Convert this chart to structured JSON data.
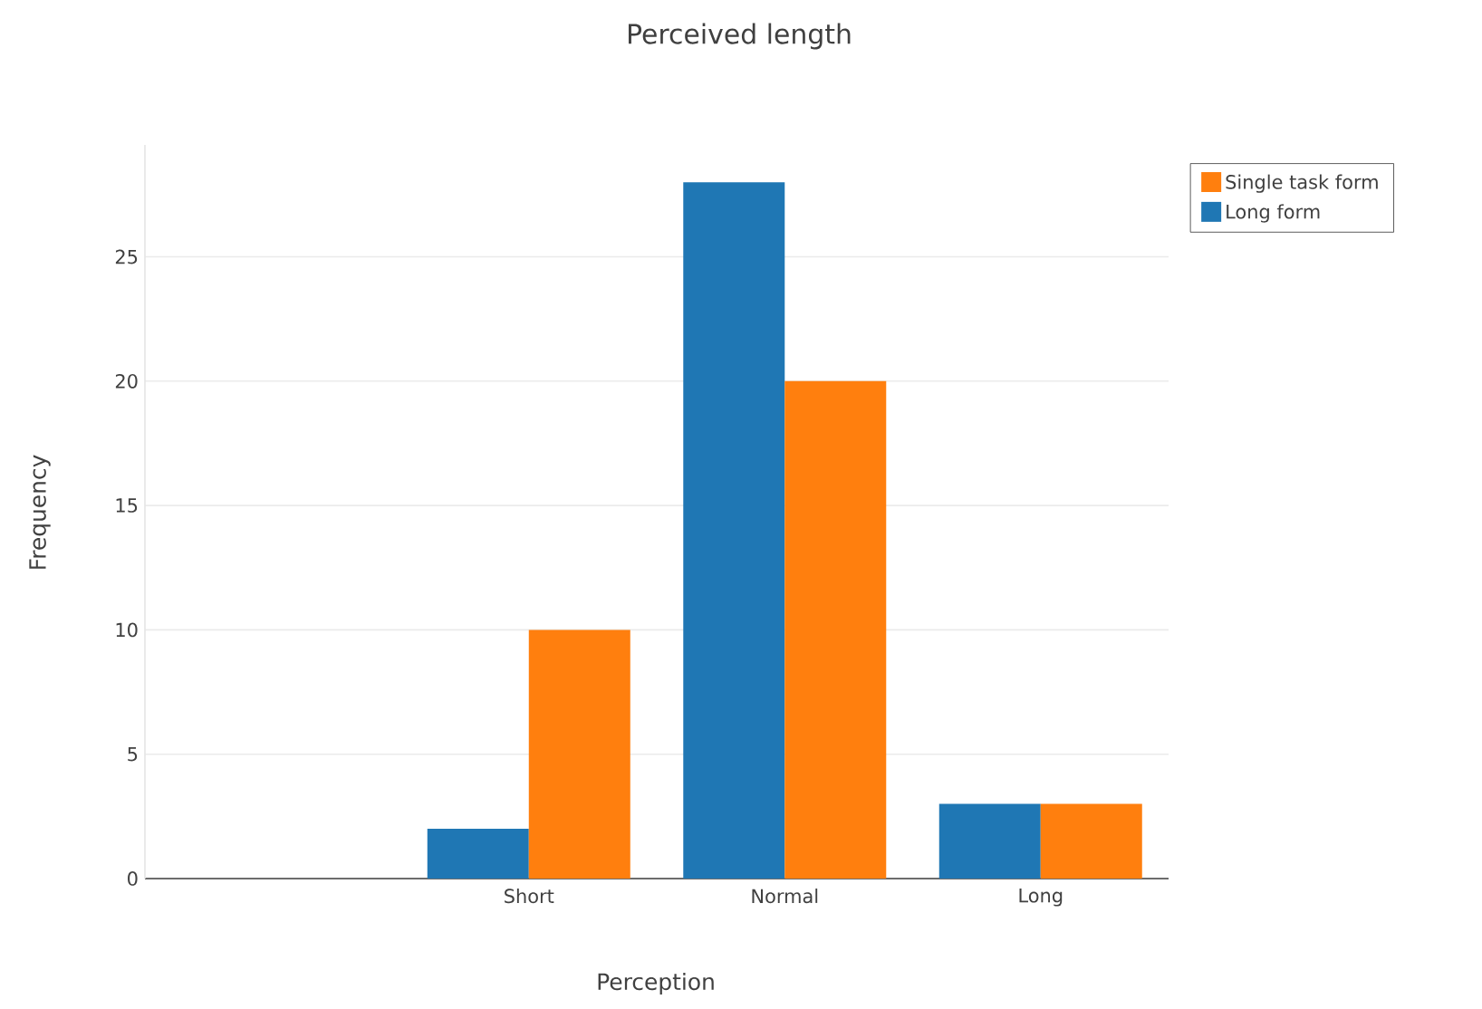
{
  "chart_data": {
    "type": "bar",
    "title": "Perceived length",
    "xlabel": "Perception",
    "ylabel": "Frequency",
    "categories": [
      null,
      "Short",
      "Normal",
      "Long"
    ],
    "series": [
      {
        "name": "Long form",
        "color": "#1f77b4",
        "values": [
          null,
          2,
          28,
          3
        ]
      },
      {
        "name": "Single task form",
        "color": "#ff7f0e",
        "values": [
          null,
          10,
          20,
          3
        ]
      }
    ],
    "ylim": [
      0,
      29.5
    ],
    "yticks": [
      0,
      5,
      10,
      15,
      20,
      25
    ],
    "grid": "y",
    "legend": "top right"
  }
}
